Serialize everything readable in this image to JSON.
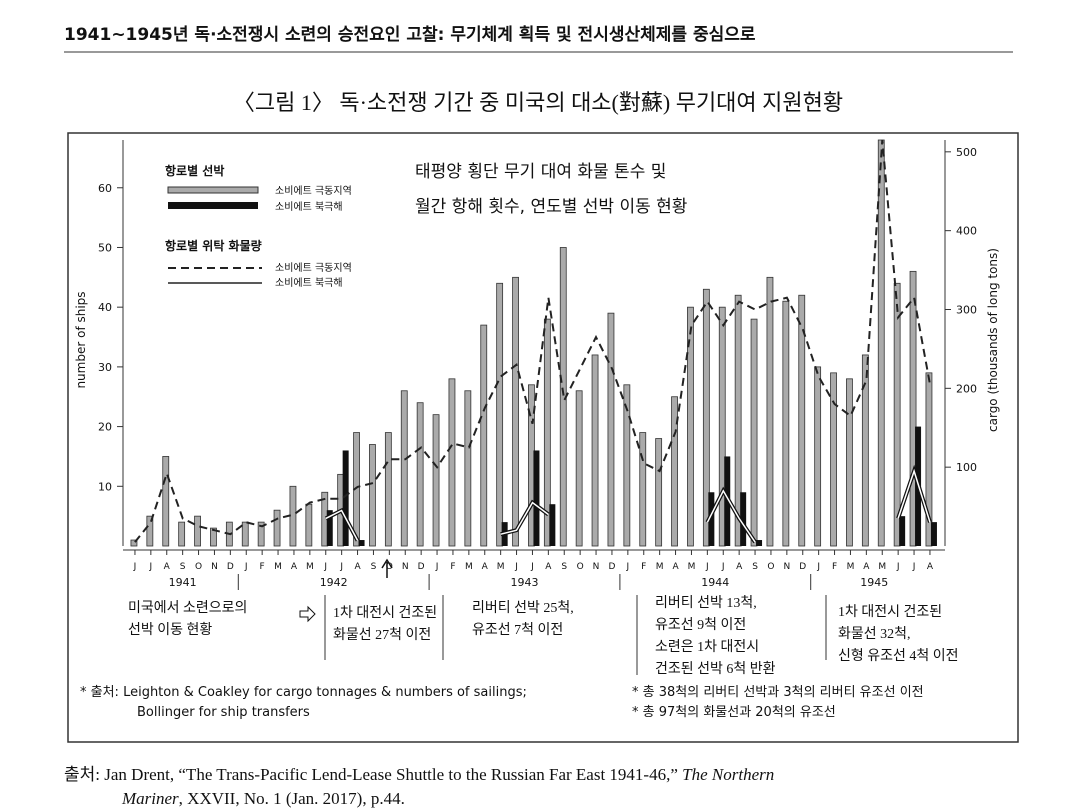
{
  "header": {
    "title": "1941~1945년 독·소전쟁시 소련의 승전요인 고찰: 무기체계 획득 및 전시생산체제를 중심으로"
  },
  "caption": "〈그림 1〉 독·소전쟁 기간 중 미국의 대소(對蘇) 무기대여 지원현황",
  "chart_data": {
    "type": "bar-line",
    "title_lines": [
      "태평양 횡단 무기 대여 화물 톤수 및",
      "월간 항해 횟수, 연도별 선박 이동 현황"
    ],
    "y_label": "number of ships",
    "y2_label": "cargo (thousands of long tons)",
    "legend_titles": [
      "항로별 선박",
      "항로별 위탁 화물량"
    ],
    "categories": [
      "J",
      "J",
      "A",
      "S",
      "O",
      "N",
      "D",
      "J",
      "F",
      "M",
      "A",
      "M",
      "J",
      "J",
      "A",
      "S",
      "O",
      "N",
      "D",
      "J",
      "F",
      "M",
      "A",
      "M",
      "J",
      "J",
      "A",
      "S",
      "O",
      "N",
      "D",
      "J",
      "F",
      "M",
      "A",
      "M",
      "J",
      "J",
      "A",
      "S",
      "O",
      "N",
      "D",
      "J",
      "F",
      "M",
      "A",
      "M",
      "J",
      "J",
      "A"
    ],
    "years": [
      "1941",
      "1942",
      "1943",
      "1944",
      "1945"
    ],
    "ylim": [
      0,
      68
    ],
    "yticks": [
      10,
      20,
      30,
      40,
      50,
      60
    ],
    "y2lim": [
      0,
      515
    ],
    "y2ticks": [
      100,
      200,
      300,
      400,
      500
    ],
    "series": [
      {
        "name": "소비에트 극동지역",
        "kind": "bar",
        "color": "#aaaaaa",
        "values": [
          1,
          5,
          15,
          4,
          5,
          3,
          4,
          4,
          4,
          6,
          10,
          7,
          9,
          12,
          19,
          17,
          19,
          26,
          24,
          22,
          28,
          26,
          37,
          44,
          45,
          27,
          38,
          50,
          26,
          32,
          39,
          27,
          19,
          18,
          25,
          40,
          43,
          40,
          42,
          38,
          45,
          41,
          42,
          30,
          29,
          28,
          32,
          68,
          44,
          46,
          29
        ]
      },
      {
        "name": "소비에트 북극해",
        "kind": "bar",
        "color": "#111111",
        "values": [
          null,
          null,
          null,
          null,
          null,
          null,
          null,
          null,
          null,
          null,
          null,
          null,
          6,
          16,
          1,
          null,
          null,
          null,
          null,
          null,
          null,
          null,
          null,
          4,
          null,
          16,
          7,
          null,
          null,
          null,
          null,
          null,
          null,
          null,
          null,
          null,
          9,
          15,
          9,
          1,
          null,
          null,
          null,
          null,
          null,
          null,
          null,
          null,
          5,
          20,
          4
        ]
      },
      {
        "name": "소비에트 극동지역",
        "kind": "dashed",
        "axis": "y2",
        "color": "#222222",
        "values": [
          5,
          30,
          92,
          35,
          25,
          20,
          15,
          30,
          25,
          35,
          40,
          55,
          60,
          60,
          75,
          80,
          110,
          110,
          125,
          100,
          130,
          125,
          175,
          215,
          230,
          155,
          315,
          185,
          225,
          265,
          225,
          170,
          105,
          95,
          145,
          280,
          310,
          280,
          310,
          300,
          310,
          315,
          275,
          215,
          180,
          165,
          210,
          515,
          290,
          315,
          205
        ]
      },
      {
        "name": "소비에트 북극해",
        "kind": "double",
        "axis": "y2",
        "color": "#111111",
        "values": [
          null,
          null,
          null,
          null,
          null,
          null,
          null,
          null,
          null,
          null,
          null,
          null,
          35,
          45,
          7,
          null,
          null,
          null,
          null,
          null,
          null,
          null,
          null,
          15,
          20,
          55,
          40,
          null,
          null,
          null,
          null,
          null,
          null,
          null,
          null,
          null,
          30,
          70,
          35,
          5,
          null,
          null,
          null,
          null,
          null,
          null,
          null,
          null,
          35,
          95,
          30
        ]
      }
    ],
    "annotations": [
      [
        "미국에서 소련으로의",
        "선박 이동 현황"
      ],
      [
        "1차 대전시 건조된",
        "화물선 27척 이전"
      ],
      [
        "리버티 선박 25척,",
        "유조선 7척 이전"
      ],
      [
        "리버티 선박 13척,",
        "유조선 9척 이전"
      ],
      [
        "소련은 1차 대전시",
        "건조된 선박 6척 반환"
      ],
      [
        "1차 대전시 건조된",
        "화물선 32척,",
        "신형 유조선 4척 이전"
      ]
    ],
    "notes": [
      [
        "* 출처: Leighton & Coakley for cargo tonnages & numbers of sailings;",
        "Bollinger for ship transfers"
      ],
      [
        "* 총 38척의 리버티 선박과 3척의 리버티 유조선 이전",
        "* 총 97척의 화물선과 20척의 유조선"
      ]
    ]
  },
  "source": {
    "prefix": "출처:",
    "text1": "Jan Drent, “The Trans-Pacific Lend-Lease Shuttle to the Russian Far East 1941-46,”",
    "italic1": "The Northern",
    "italic2": "Mariner",
    "text2": ", XXVII, No. 1 (Jan. 2017), p.44."
  }
}
